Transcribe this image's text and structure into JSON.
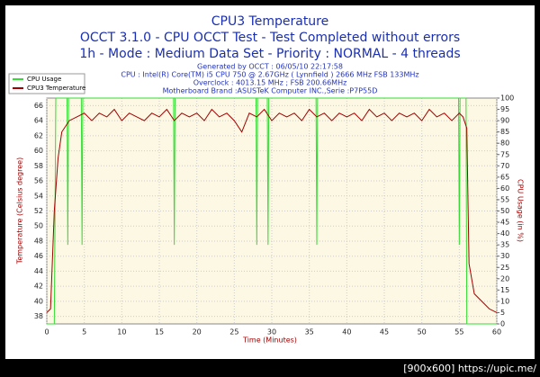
{
  "chart_data": {
    "type": "line",
    "title": "CPU3 Temperature",
    "subtitle": [
      "OCCT 3.1.0 - CPU OCCT Test - Test Completed without errors",
      "1h - Mode : Medium Data Set - Priority : NORMAL - 4 threads"
    ],
    "info": [
      "Generated by OCCT : 06/05/10 22:17:58",
      "CPU : Intel(R) Core(TM) i5 CPU 750 @ 2.67GHz ( Lynnfield ) 2666 MHz FSB 133MHz",
      "Overclock : 4013.15 MHz ; FSB 200.66MHz",
      "Motherboard Brand :ASUSTeK Computer INC.,Serie :P7P55D"
    ],
    "xlabel": "Time (Minutes)",
    "ylabel": "Temperature (Celsius degree)",
    "y2label": "CPU Usage (in %)",
    "footer": "[900x600] https://upic.me/",
    "xlim": [
      0,
      60
    ],
    "xticks": [
      0,
      5,
      10,
      15,
      20,
      25,
      30,
      35,
      40,
      45,
      50,
      55,
      60
    ],
    "ylim": [
      37,
      67
    ],
    "yticks": [
      38,
      40,
      42,
      44,
      46,
      48,
      50,
      52,
      54,
      56,
      58,
      60,
      62,
      64,
      66
    ],
    "y2lim": [
      0,
      100
    ],
    "y2ticks": [
      0,
      5,
      10,
      15,
      20,
      25,
      30,
      35,
      40,
      45,
      50,
      55,
      60,
      65,
      70,
      75,
      80,
      85,
      90,
      95,
      100
    ],
    "grid": true,
    "series": [
      {
        "name": "CPU Usage",
        "color": "#33dd33",
        "axis": "y2",
        "x": [
          0,
          1,
          1.2,
          2.7,
          2.8,
          2.9,
          4.6,
          4.7,
          4.8,
          16.9,
          17,
          17.1,
          27.9,
          28,
          28.1,
          29.4,
          29.5,
          29.6,
          35.9,
          36,
          36.1,
          54.9,
          55,
          55.1,
          55.9,
          56,
          60
        ],
        "values": [
          0,
          0,
          100,
          100,
          35,
          100,
          100,
          35,
          100,
          100,
          35,
          100,
          100,
          35,
          100,
          100,
          35,
          100,
          100,
          35,
          100,
          100,
          35,
          100,
          100,
          0,
          0
        ]
      },
      {
        "name": "CPU3 Temperature",
        "color": "#a00000",
        "x": [
          0,
          0.5,
          1,
          1.5,
          2,
          3,
          4,
          5,
          6,
          7,
          8,
          9,
          10,
          11,
          12,
          13,
          14,
          15,
          16,
          17,
          18,
          19,
          20,
          21,
          22,
          23,
          24,
          25,
          26,
          27,
          28,
          29,
          30,
          31,
          32,
          33,
          34,
          35,
          36,
          37,
          38,
          39,
          40,
          41,
          42,
          43,
          44,
          45,
          46,
          47,
          48,
          49,
          50,
          51,
          52,
          53,
          54,
          55,
          55.5,
          56,
          56.3,
          57,
          58,
          59,
          60
        ],
        "values": [
          38.5,
          39,
          52,
          59,
          62.5,
          64,
          64.5,
          65,
          64,
          65,
          64.5,
          65.5,
          64,
          65,
          64.5,
          64,
          65,
          64.5,
          65.5,
          64,
          65,
          64.5,
          65,
          64,
          65.5,
          64.5,
          65,
          64,
          62.5,
          65,
          64.5,
          65.5,
          64,
          65,
          64.5,
          65,
          64,
          65.5,
          64.5,
          65,
          64,
          65,
          64.5,
          65,
          64,
          65.5,
          64.5,
          65,
          64,
          65,
          64.5,
          65,
          64,
          65.5,
          64.5,
          65,
          64,
          65,
          64.5,
          63,
          45,
          41,
          40,
          39,
          38.5
        ]
      }
    ]
  }
}
